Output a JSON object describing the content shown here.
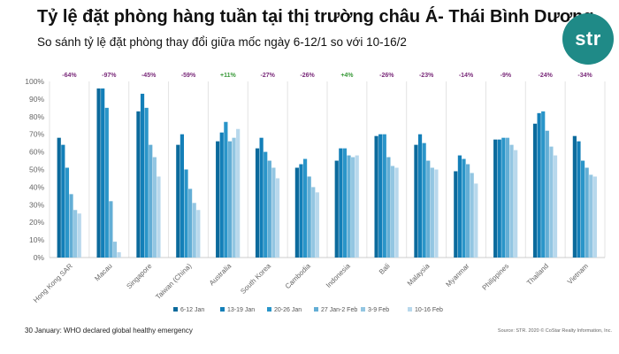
{
  "header": {
    "title": "Tỷ lệ đặt phòng hàng tuần tại thị trường châu Á- Thái Bình Dương",
    "subtitle": "So sánh tỷ lệ đặt phòng thay đổi giữa mốc ngày 6-12/1 so với 10-16/2"
  },
  "logo": {
    "text": "str",
    "color": "#1f8a87"
  },
  "footnote": "30 January: WHO declared global healthy emergency",
  "source": "Source: STR. 2020 © CoStar Realty Information, Inc.",
  "colors": {
    "series": [
      "#0b6a9c",
      "#137fb8",
      "#2a95c9",
      "#63aed5",
      "#93c6e2",
      "#b8d8ec"
    ],
    "positive_change": "#3a9a3a",
    "negative_change": "#7a2a7a",
    "grid": "#e3e3e3"
  },
  "chart_data": {
    "type": "bar",
    "title": "",
    "xlabel": "",
    "ylabel": "",
    "ylim": [
      0,
      100
    ],
    "yticks": [
      "0%",
      "10%",
      "20%",
      "30%",
      "40%",
      "50%",
      "60%",
      "70%",
      "80%",
      "90%",
      "100%"
    ],
    "grid": "vertical separators between markets",
    "legend_position": "bottom",
    "categories": [
      "Hong Kong SAR",
      "Macau",
      "Singapore",
      "Taiwan (China)",
      "Australia",
      "South Korea",
      "Cambodia",
      "Indonesia",
      "Bali",
      "Malaysia",
      "Myanmar",
      "Philippines",
      "Thailand",
      "Vietnam"
    ],
    "change_labels": [
      "-64%",
      "-97%",
      "-45%",
      "-59%",
      "+11%",
      "-27%",
      "-26%",
      "+4%",
      "-26%",
      "-23%",
      "-14%",
      "-9%",
      "-24%",
      "-34%"
    ],
    "series": [
      {
        "name": "6-12 Jan",
        "values": [
          68,
          96,
          83,
          64,
          66,
          62,
          51,
          55,
          69,
          64,
          49,
          67,
          76,
          69
        ]
      },
      {
        "name": "13-19 Jan",
        "values": [
          64,
          96,
          93,
          70,
          71,
          68,
          53,
          62,
          70,
          70,
          58,
          67,
          82,
          66
        ]
      },
      {
        "name": "20-26 Jan",
        "values": [
          51,
          85,
          85,
          50,
          77,
          60,
          56,
          62,
          70,
          65,
          56,
          68,
          83,
          55
        ]
      },
      {
        "name": "27 Jan-2 Feb",
        "values": [
          36,
          32,
          64,
          39,
          66,
          55,
          46,
          58,
          57,
          55,
          53,
          68,
          72,
          51
        ]
      },
      {
        "name": "3-9 Feb",
        "values": [
          27,
          9,
          57,
          31,
          68,
          51,
          40,
          57,
          52,
          51,
          48,
          64,
          63,
          47
        ]
      },
      {
        "name": "10-16 Feb",
        "values": [
          25,
          3,
          46,
          27,
          73,
          45,
          37,
          58,
          51,
          50,
          42,
          61,
          58,
          46
        ]
      }
    ]
  }
}
